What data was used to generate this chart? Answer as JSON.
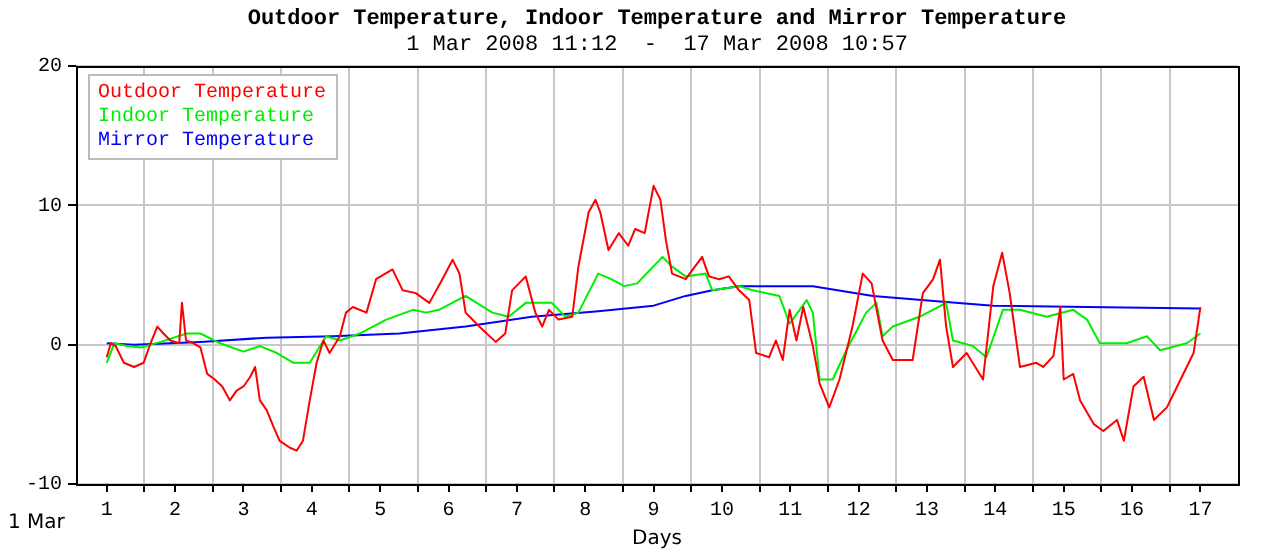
{
  "chart_data": {
    "type": "line",
    "title": "Outdoor Temperature, Indoor Temperature and Mirror Temperature",
    "subtitle": "1 Mar 2008 11:12  -  17 Mar 2008 10:57",
    "xlabel": "Days",
    "annotations": [
      "1 Mar"
    ],
    "xlim": [
      0.55,
      17.55
    ],
    "xticks": [
      1,
      {
        "value": 1.55,
        "label": null
      },
      2,
      {
        "value": 2.55,
        "label": null
      },
      3,
      {
        "value": 3.55,
        "label": null
      },
      4,
      {
        "value": 4.55,
        "label": null
      },
      5,
      {
        "value": 5.55,
        "label": null
      },
      6,
      {
        "value": 6.55,
        "label": null
      },
      7,
      {
        "value": 7.55,
        "label": null
      },
      8,
      {
        "value": 8.55,
        "label": null
      },
      9,
      {
        "value": 9.55,
        "label": null
      },
      10,
      {
        "value": 10.55,
        "label": null
      },
      11,
      {
        "value": 11.55,
        "label": null
      },
      12,
      {
        "value": 12.55,
        "label": null
      },
      13,
      {
        "value": 13.55,
        "label": null
      },
      14,
      {
        "value": 14.55,
        "label": null
      },
      15,
      {
        "value": 15.55,
        "label": null
      },
      16,
      {
        "value": 16.55,
        "label": null
      },
      17
    ],
    "ylim": [
      -10,
      20
    ],
    "yticks": [
      -10,
      0,
      10,
      20
    ],
    "grid": true,
    "legend": "top left",
    "marker": "none",
    "line_style": "solid",
    "series": [
      {
        "name": "Outdoor Temperature",
        "color": "#ff0000",
        "x": [
          1.0,
          1.06,
          1.13,
          1.25,
          1.4,
          1.54,
          1.64,
          1.74,
          1.83,
          1.93,
          2.06,
          2.1,
          2.16,
          2.27,
          2.37,
          2.47,
          2.58,
          2.69,
          2.8,
          2.9,
          3.0,
          3.1,
          3.17,
          3.24,
          3.34,
          3.44,
          3.53,
          3.68,
          3.78,
          3.87,
          3.97,
          4.07,
          4.17,
          4.26,
          4.41,
          4.5,
          4.6,
          4.8,
          4.94,
          5.18,
          5.33,
          5.52,
          5.72,
          5.91,
          6.06,
          6.16,
          6.25,
          6.45,
          6.69,
          6.83,
          6.93,
          7.13,
          7.27,
          7.37,
          7.47,
          7.61,
          7.81,
          7.9,
          8.05,
          8.15,
          8.22,
          8.34,
          8.49,
          8.63,
          8.73,
          8.87,
          9.0,
          9.1,
          9.18,
          9.27,
          9.47,
          9.71,
          9.81,
          9.96,
          10.1,
          10.25,
          10.4,
          10.5,
          10.69,
          10.79,
          10.89,
          10.99,
          11.09,
          11.19,
          11.33,
          11.43,
          11.57,
          11.72,
          11.91,
          12.06,
          12.19,
          12.35,
          12.5,
          12.79,
          12.94,
          13.09,
          13.19,
          13.28,
          13.38,
          13.58,
          13.82,
          13.97,
          14.1,
          14.21,
          14.36,
          14.6,
          14.7,
          14.85,
          14.95,
          15.0,
          15.14,
          15.24,
          15.44,
          15.58,
          15.78,
          15.88,
          16.02,
          16.17,
          16.32,
          16.51,
          16.71,
          16.9,
          17.0
        ],
        "values": [
          -0.9,
          0.1,
          -0.1,
          -1.3,
          -1.6,
          -1.3,
          0.1,
          1.3,
          0.8,
          0.3,
          0.1,
          3.0,
          0.3,
          0.1,
          -0.2,
          -2.1,
          -2.5,
          -3.0,
          -4.0,
          -3.3,
          -3.0,
          -2.3,
          -1.6,
          -4.0,
          -4.7,
          -5.9,
          -6.9,
          -7.4,
          -7.6,
          -6.9,
          -4.0,
          -1.3,
          0.3,
          -0.6,
          0.6,
          2.3,
          2.7,
          2.3,
          4.7,
          5.4,
          3.9,
          3.7,
          3.0,
          4.7,
          6.1,
          5.1,
          2.3,
          1.3,
          0.2,
          0.8,
          3.9,
          4.9,
          2.3,
          1.3,
          2.5,
          1.8,
          2.0,
          5.6,
          9.5,
          10.4,
          9.5,
          6.8,
          8.0,
          7.1,
          8.3,
          8.0,
          11.4,
          10.4,
          7.5,
          5.1,
          4.7,
          6.3,
          4.9,
          4.7,
          4.9,
          3.9,
          3.2,
          -0.6,
          -0.9,
          0.3,
          -1.1,
          2.5,
          0.3,
          2.7,
          -0.1,
          -2.8,
          -4.5,
          -2.5,
          1.3,
          5.1,
          4.4,
          0.3,
          -1.1,
          -1.1,
          3.7,
          4.7,
          6.1,
          1.3,
          -1.6,
          -0.6,
          -2.5,
          4.2,
          6.6,
          3.7,
          -1.6,
          -1.3,
          -1.6,
          -0.8,
          2.7,
          -2.5,
          -2.1,
          -4.0,
          -5.7,
          -6.2,
          -5.4,
          -6.9,
          -3.0,
          -2.3,
          -5.4,
          -4.5,
          -2.5,
          -0.6,
          2.7
        ]
      },
      {
        "name": "Indoor Temperature",
        "color": "#00ee00",
        "x": [
          1.0,
          1.11,
          1.3,
          1.5,
          1.79,
          2.17,
          2.37,
          2.66,
          3.0,
          3.24,
          3.49,
          3.73,
          3.97,
          4.21,
          4.41,
          4.7,
          5.09,
          5.48,
          5.67,
          5.86,
          6.25,
          6.64,
          6.88,
          7.13,
          7.51,
          7.71,
          7.9,
          8.19,
          8.38,
          8.57,
          8.76,
          9.13,
          9.27,
          9.47,
          9.76,
          9.86,
          10.25,
          10.45,
          10.84,
          10.99,
          11.24,
          11.33,
          11.43,
          11.62,
          11.82,
          12.11,
          12.26,
          12.35,
          12.5,
          12.89,
          13.28,
          13.38,
          13.67,
          13.87,
          14.11,
          14.36,
          14.75,
          15.14,
          15.34,
          15.53,
          15.92,
          16.22,
          16.41,
          16.8,
          17.0
        ],
        "values": [
          -1.3,
          0.1,
          -0.1,
          -0.2,
          0.2,
          0.8,
          0.8,
          0.1,
          -0.5,
          -0.1,
          -0.6,
          -1.3,
          -1.3,
          0.6,
          0.3,
          0.8,
          1.8,
          2.5,
          2.3,
          2.5,
          3.5,
          2.3,
          2.0,
          3.0,
          3.0,
          2.0,
          2.3,
          5.1,
          4.7,
          4.2,
          4.4,
          6.3,
          5.6,
          4.9,
          5.1,
          3.9,
          4.2,
          3.9,
          3.5,
          1.5,
          3.2,
          2.3,
          -2.5,
          -2.5,
          -0.4,
          2.3,
          3.0,
          0.6,
          1.3,
          2.0,
          3.0,
          0.3,
          -0.1,
          -0.9,
          2.5,
          2.5,
          2.0,
          2.5,
          1.8,
          0.1,
          0.1,
          0.6,
          -0.4,
          0.1,
          0.8
        ]
      },
      {
        "name": "Mirror Temperature",
        "color": "#0000ff",
        "x": [
          1.0,
          1.4,
          2.37,
          3.34,
          4.31,
          5.28,
          6.25,
          7.22,
          8.19,
          9.0,
          9.47,
          9.86,
          10.25,
          11.33,
          12.21,
          13.19,
          13.97,
          15.34,
          17.0
        ],
        "values": [
          0.1,
          0.0,
          0.2,
          0.5,
          0.6,
          0.8,
          1.3,
          2.0,
          2.4,
          2.8,
          3.5,
          3.9,
          4.2,
          4.2,
          3.5,
          3.1,
          2.8,
          2.7,
          2.6
        ]
      }
    ]
  }
}
